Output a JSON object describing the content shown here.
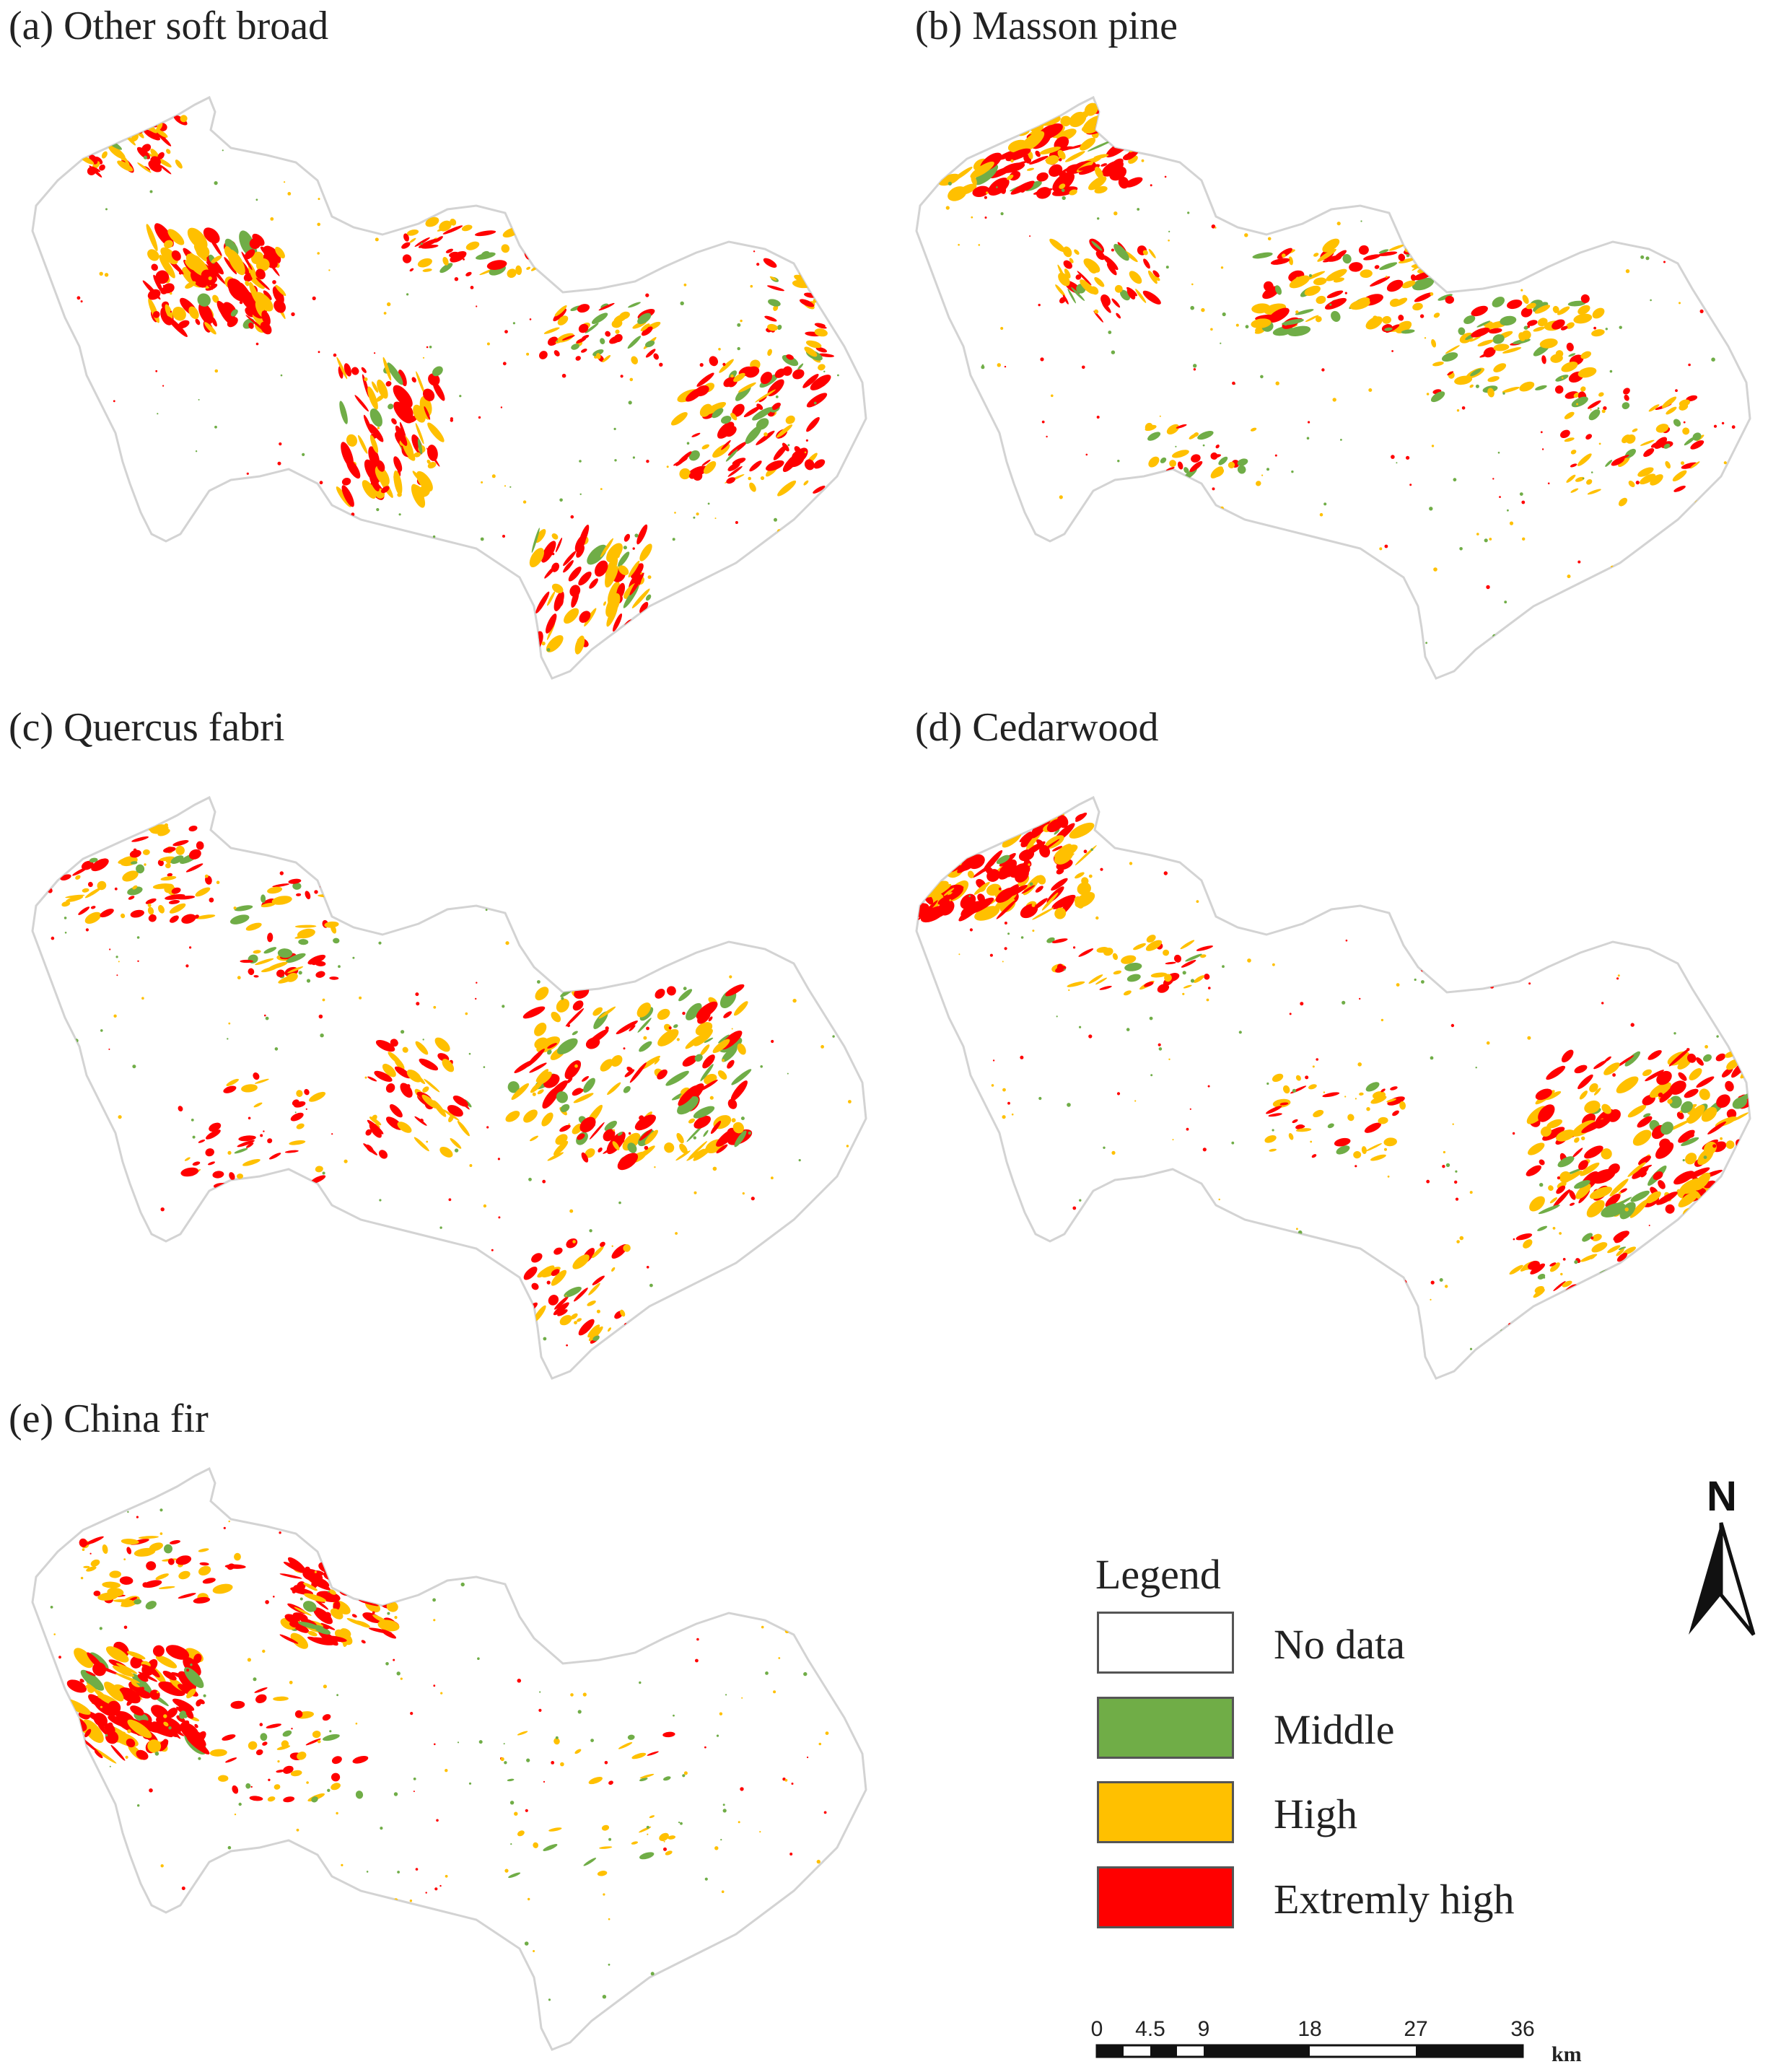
{
  "panels": [
    {
      "id": "a",
      "title": "(a) Other soft broad"
    },
    {
      "id": "b",
      "title": "(b) Masson pine"
    },
    {
      "id": "c",
      "title": "(c) Quercus fabri"
    },
    {
      "id": "d",
      "title": "(d) Cedarwood"
    },
    {
      "id": "e",
      "title": "(e) China fir"
    }
  ],
  "legend": {
    "title": "Legend",
    "items": [
      {
        "label": "No data",
        "color": "#ffffff"
      },
      {
        "label": "Middle",
        "color": "#70ad47"
      },
      {
        "label": "High",
        "color": "#ffc000"
      },
      {
        "label": "Extremly high",
        "color": "#ff0000"
      }
    ]
  },
  "north_arrow": {
    "label": "N"
  },
  "scale_bar": {
    "ticks": [
      "0",
      "4.5",
      "9",
      "18",
      "27",
      "36"
    ],
    "unit": "km"
  }
}
